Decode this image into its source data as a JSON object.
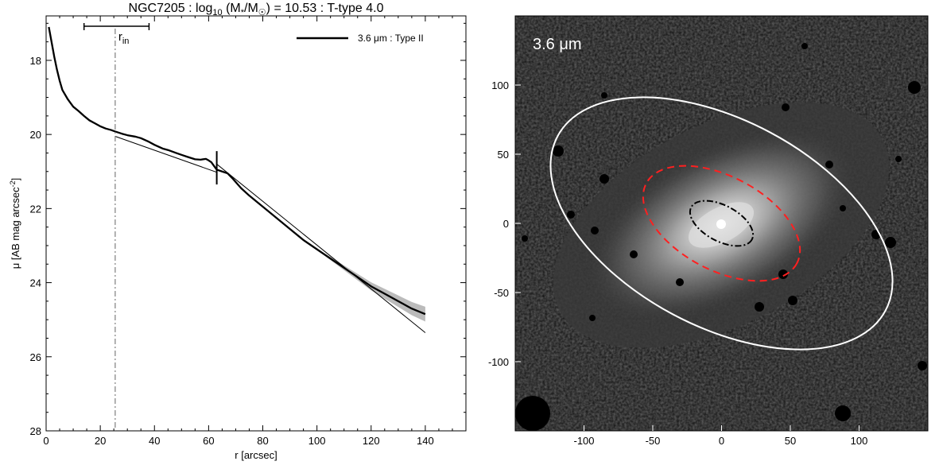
{
  "chart_data": [
    {
      "type": "line",
      "title_main": "NGC7205 : log",
      "title_sub": "10",
      "title_mid": " (M",
      "title_sub2": "*",
      "title_mid2": "/M",
      "title_sun": "☉",
      "title_end": ") = 10.53 : T-type 4.0",
      "xlabel": "r [arcsec]",
      "ylabel_main": "μ [AB mag arcsec",
      "ylabel_sup": "-2",
      "ylabel_end": "]",
      "xlim": [
        0,
        155
      ],
      "ylim": [
        28,
        16.8
      ],
      "y_inverted": true,
      "xticks": [
        0,
        20,
        40,
        60,
        80,
        100,
        120,
        140
      ],
      "yticks": [
        18,
        20,
        22,
        24,
        26,
        28
      ],
      "legend": {
        "label": "3.6 μm : Type II",
        "placement": "top-right"
      },
      "r_in": {
        "value": 25.5,
        "label_main": "r",
        "label_sub": "in",
        "range": [
          14,
          38
        ]
      },
      "break_radius": 63,
      "series": [
        {
          "name": "3.6 μm : Type II",
          "x": [
            1,
            2,
            3,
            4,
            5,
            6,
            8,
            10,
            12,
            14,
            16,
            18,
            20,
            22,
            24,
            25.5,
            28,
            30,
            33,
            35,
            38,
            40,
            43,
            45,
            48,
            50,
            52,
            55,
            57,
            59,
            60,
            61,
            62,
            63,
            65,
            67,
            69,
            72,
            75,
            80,
            85,
            90,
            95,
            100,
            105,
            110,
            115,
            120,
            125,
            130,
            135,
            140
          ],
          "y": [
            17.1,
            17.5,
            17.9,
            18.25,
            18.55,
            18.8,
            19.05,
            19.25,
            19.37,
            19.5,
            19.62,
            19.7,
            19.78,
            19.84,
            19.88,
            19.92,
            19.98,
            20.02,
            20.06,
            20.1,
            20.2,
            20.28,
            20.38,
            20.42,
            20.5,
            20.55,
            20.6,
            20.67,
            20.68,
            20.66,
            20.7,
            20.75,
            20.85,
            20.95,
            21.0,
            21.05,
            21.2,
            21.45,
            21.65,
            21.95,
            22.25,
            22.55,
            22.85,
            23.1,
            23.35,
            23.6,
            23.85,
            24.1,
            24.3,
            24.5,
            24.7,
            24.85
          ]
        }
      ],
      "fits": [
        {
          "name": "inner fit",
          "x": [
            25.5,
            63
          ],
          "y": [
            20.05,
            21.02
          ]
        },
        {
          "name": "outer fit",
          "x": [
            63,
            140
          ],
          "y": [
            20.8,
            25.35
          ]
        }
      ]
    },
    {
      "type": "image",
      "label": "3.6 μm",
      "xlim": [
        -150,
        150
      ],
      "ylim": [
        -150,
        150
      ],
      "xticks": [
        -100,
        -50,
        0,
        50,
        100
      ],
      "yticks": [
        -100,
        -50,
        0,
        50,
        100
      ],
      "ellipses": [
        {
          "name": "outer",
          "color": "#ffffff",
          "style": "solid",
          "cx": 0,
          "cy": 0,
          "a": 135,
          "b": 75,
          "angle_deg": -28
        },
        {
          "name": "break",
          "color": "#ff2020",
          "style": "dashed",
          "cx": 0,
          "cy": 0,
          "a": 62,
          "b": 34,
          "angle_deg": -28
        },
        {
          "name": "inner",
          "color": "#000000",
          "style": "dashdot",
          "cx": 0,
          "cy": 0,
          "a": 25,
          "b": 13,
          "angle_deg": -28
        }
      ]
    }
  ]
}
